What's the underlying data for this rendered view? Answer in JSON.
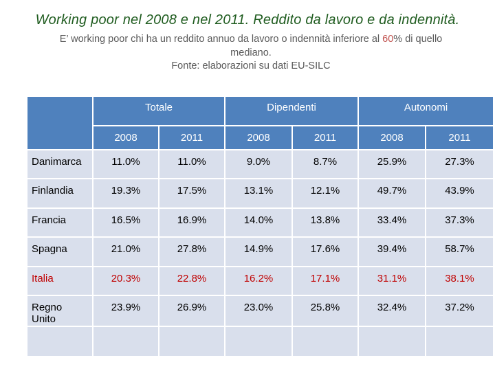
{
  "title": "Working poor nel 2008 e nel 2011. Reddito da lavoro e da indennità.",
  "subtitle": {
    "line1_before": "E’ working poor chi ha un reddito annuo da lavoro o indennità inferiore al ",
    "line1_highlight": "60",
    "line1_after": "% di quello",
    "line2": "mediano.",
    "line3": "Fonte: elaborazioni su dati EU-SILC"
  },
  "table": {
    "groups": [
      "Totale",
      "Dipendenti",
      "Autonomi"
    ],
    "years": [
      "2008",
      "2011",
      "2008",
      "2011",
      "2008",
      "2011"
    ],
    "rows": [
      {
        "country": "Danimarca",
        "values": [
          "11.0%",
          "11.0%",
          "9.0%",
          "8.7%",
          "25.9%",
          "27.3%"
        ]
      },
      {
        "country": "Finlandia",
        "values": [
          "19.3%",
          "17.5%",
          "13.1%",
          "12.1%",
          "49.7%",
          "43.9%"
        ]
      },
      {
        "country": "Francia",
        "values": [
          "16.5%",
          "16.9%",
          "14.0%",
          "13.8%",
          "33.4%",
          "37.3%"
        ]
      },
      {
        "country": "Spagna",
        "values": [
          "21.0%",
          "27.8%",
          "14.9%",
          "17.6%",
          "39.4%",
          "58.7%"
        ]
      },
      {
        "country": "Italia",
        "values": [
          "20.3%",
          "22.8%",
          "16.2%",
          "17.1%",
          "31.1%",
          "38.1%"
        ]
      },
      {
        "country": "Regno Unito",
        "values": [
          "23.9%",
          "26.9%",
          "23.0%",
          "25.8%",
          "32.4%",
          "37.2%"
        ]
      }
    ]
  },
  "colors": {
    "header_bg": "#4f81bd",
    "cell_bg": "#d9dfec",
    "title": "#1f5c1f",
    "highlight_row": "#c00000"
  }
}
